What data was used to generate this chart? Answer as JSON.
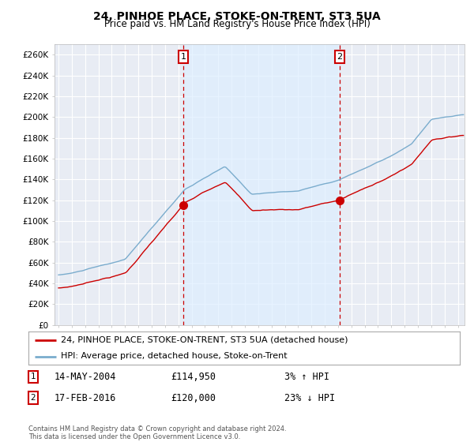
{
  "title": "24, PINHOE PLACE, STOKE-ON-TRENT, ST3 5UA",
  "subtitle": "Price paid vs. HM Land Registry's House Price Index (HPI)",
  "ylabel_ticks": [
    "£0",
    "£20K",
    "£40K",
    "£60K",
    "£80K",
    "£100K",
    "£120K",
    "£140K",
    "£160K",
    "£180K",
    "£200K",
    "£220K",
    "£240K",
    "£260K"
  ],
  "ytick_values": [
    0,
    20000,
    40000,
    60000,
    80000,
    100000,
    120000,
    140000,
    160000,
    180000,
    200000,
    220000,
    240000,
    260000
  ],
  "ylim": [
    0,
    270000
  ],
  "sale1_date": 2004.37,
  "sale1_price": 114950,
  "sale2_date": 2016.12,
  "sale2_price": 120000,
  "legend_line1": "24, PINHOE PLACE, STOKE-ON-TRENT, ST3 5UA (detached house)",
  "legend_line2": "HPI: Average price, detached house, Stoke-on-Trent",
  "footer": "Contains HM Land Registry data © Crown copyright and database right 2024.\nThis data is licensed under the Open Government Licence v3.0.",
  "line_color_red": "#cc0000",
  "line_color_blue": "#7aaccd",
  "vline_color": "#cc0000",
  "shade_color": "#ddeeff",
  "background_color": "#ffffff",
  "plot_bg_color": "#e8ecf4",
  "grid_color": "#ffffff"
}
